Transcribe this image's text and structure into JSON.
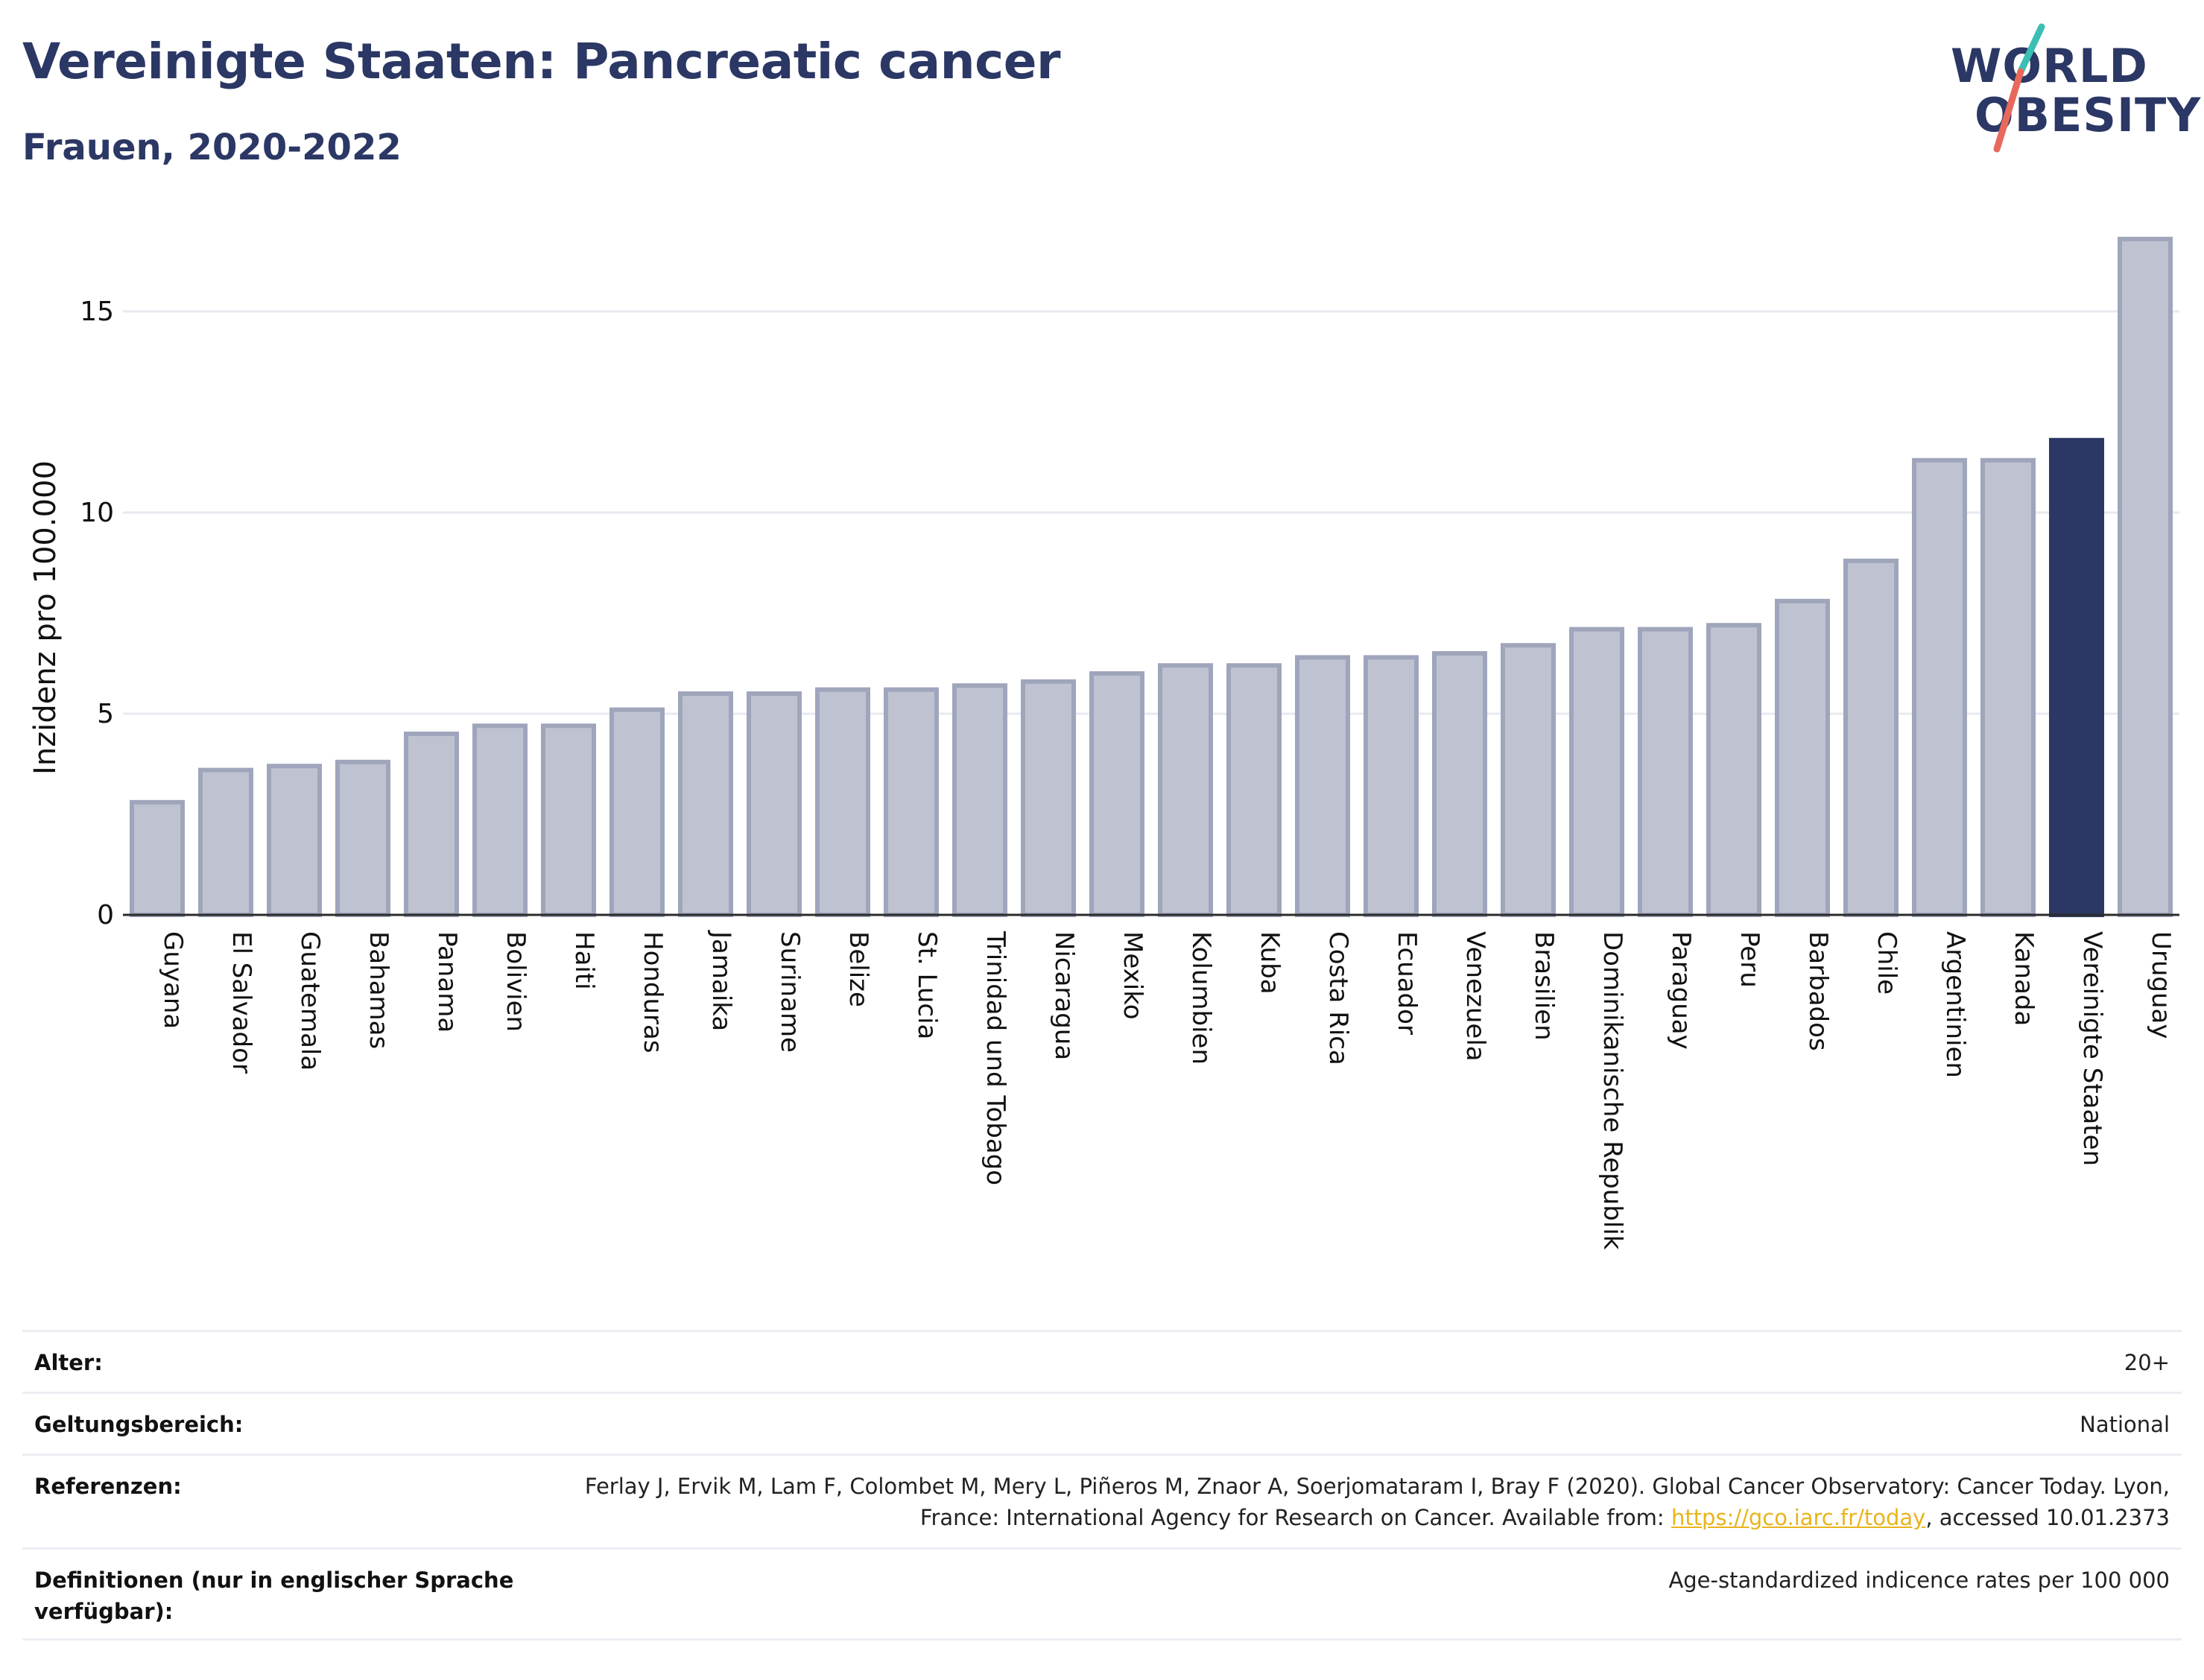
{
  "header": {
    "title": "Vereinigte Staaten: Pancreatic cancer",
    "subtitle": "Frauen, 2020-2022"
  },
  "logo": {
    "line1": "WORLD",
    "line2": "OBESITY"
  },
  "colors": {
    "bar_fill": "#bfc3d1",
    "bar_stroke": "#9fa5bb",
    "highlight": "#2b3764",
    "title": "#2b3764",
    "grid": "#e8eaf0",
    "logo_teal": "#3bbfb5",
    "logo_coral": "#e8695c",
    "link": "#e8b41c"
  },
  "chart_data": {
    "type": "bar",
    "ylabel": "Inzidenz pro 100.000",
    "ylim": [
      0,
      17
    ],
    "yticks": [
      0,
      5,
      10,
      15
    ],
    "grid": true,
    "highlight": "Vereinigte Staaten",
    "categories": [
      "Guyana",
      "El Salvador",
      "Guatemala",
      "Bahamas",
      "Panama",
      "Bolivien",
      "Haiti",
      "Honduras",
      "Jamaika",
      "Suriname",
      "Belize",
      "St. Lucia",
      "Trinidad und Tobago",
      "Nicaragua",
      "Mexiko",
      "Kolumbien",
      "Kuba",
      "Costa Rica",
      "Ecuador",
      "Venezuela",
      "Brasilien",
      "Dominikanische Republik",
      "Paraguay",
      "Peru",
      "Barbados",
      "Chile",
      "Argentinien",
      "Kanada",
      "Vereinigte Staaten",
      "Uruguay"
    ],
    "values": [
      2.8,
      3.6,
      3.7,
      3.8,
      4.5,
      4.7,
      4.7,
      5.1,
      5.5,
      5.5,
      5.6,
      5.6,
      5.7,
      5.8,
      6.0,
      6.2,
      6.2,
      6.4,
      6.4,
      6.5,
      6.7,
      7.1,
      7.1,
      7.2,
      7.8,
      8.8,
      11.3,
      11.3,
      11.8,
      16.8
    ]
  },
  "meta": {
    "age_label": "Alter:",
    "age_value": "20+",
    "scope_label": "Geltungsbereich:",
    "scope_value": "National",
    "refs_label": "Referenzen:",
    "refs_text_1": "Ferlay J, Ervik M, Lam F, Colombet M, Mery L, Piñeros M, Znaor A, Soerjomataram I, Bray F (2020). Global Cancer Observatory: Cancer Today. Lyon, France: International Agency for Research on Cancer. Available from: ",
    "refs_link": "https://gco.iarc.fr/today",
    "refs_text_2": ", accessed 10.01.2373",
    "defs_label": "Definitionen (nur in englischer Sprache verfügbar):",
    "defs_value": "Age-standardized indicence rates per 100 000"
  }
}
